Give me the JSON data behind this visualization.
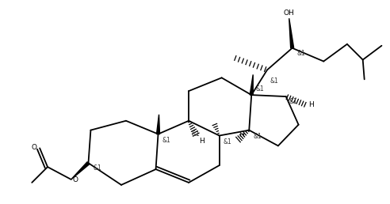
{
  "background": "#ffffff",
  "line_color": "#000000",
  "line_width": 1.3,
  "text_color": "#000000",
  "font_size": 6.5,
  "fig_width": 4.92,
  "fig_height": 2.58,
  "dpi": 100,
  "xlim": [
    0,
    492
  ],
  "ylim": [
    0,
    258
  ]
}
